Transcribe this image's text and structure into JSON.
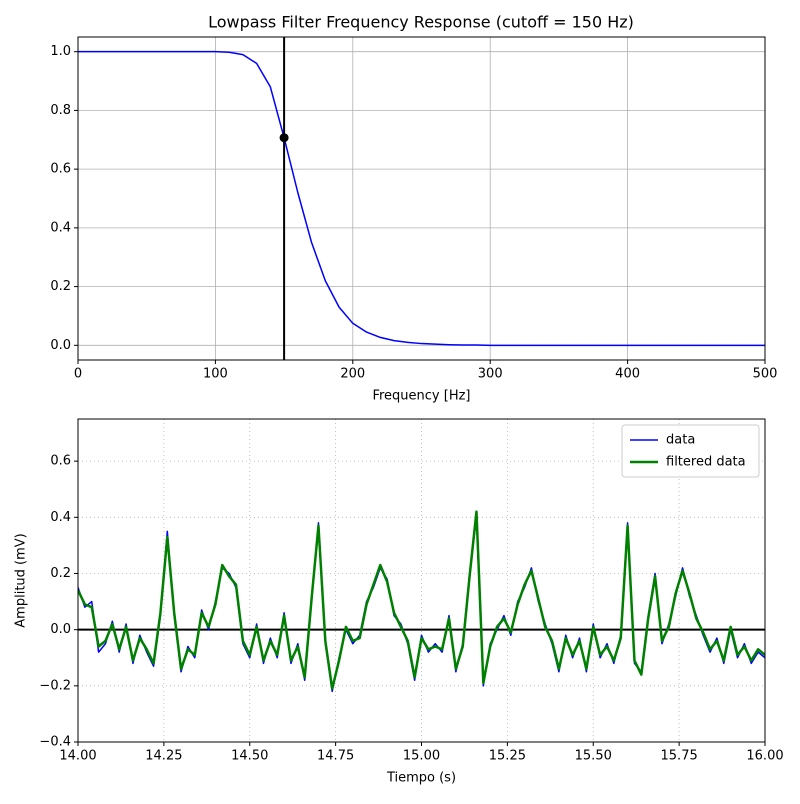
{
  "chart_data": [
    {
      "type": "line",
      "title": "Lowpass Filter Frequency Response (cutoff = 150 Hz)",
      "x_label": "Frequency [Hz]",
      "x": [
        0,
        10,
        20,
        30,
        40,
        50,
        60,
        70,
        80,
        90,
        100,
        110,
        120,
        130,
        140,
        150,
        160,
        170,
        180,
        190,
        200,
        210,
        220,
        230,
        240,
        250,
        260,
        270,
        280,
        290,
        300,
        310,
        320,
        330,
        340,
        350,
        360,
        370,
        380,
        390,
        400,
        410,
        420,
        430,
        440,
        450,
        460,
        470,
        480,
        490,
        500
      ],
      "values": [
        1,
        1,
        1,
        1,
        1,
        1,
        1,
        1,
        1,
        1,
        1,
        0.998,
        0.99,
        0.96,
        0.88,
        0.707,
        0.52,
        0.35,
        0.22,
        0.13,
        0.075,
        0.045,
        0.027,
        0.016,
        0.01,
        0.006,
        0.004,
        0.002,
        0.001,
        0.001,
        0,
        0,
        0,
        0,
        0,
        0,
        0,
        0,
        0,
        0,
        0,
        0,
        0,
        0,
        0,
        0,
        0,
        0,
        0,
        0,
        0
      ],
      "color": "#0000ff",
      "cutoff_line": 150,
      "cutoff_point": {
        "x": 150,
        "y": 0.707
      },
      "marker_color": "#000000",
      "xlim": [
        0,
        500
      ],
      "xticks": [
        0,
        100,
        200,
        300,
        400,
        500
      ],
      "ylim": [
        -0.05,
        1.05
      ],
      "yticks": [
        {
          "value": 0,
          "label": "0.0"
        },
        {
          "value": 0.2,
          "label": "0.2"
        },
        {
          "value": 0.4,
          "label": "0.4"
        },
        {
          "value": 0.6,
          "label": "0.6"
        },
        {
          "value": 0.8,
          "label": "0.8"
        },
        {
          "value": 1,
          "label": "1.0"
        }
      ],
      "grid": "solid"
    },
    {
      "type": "line",
      "x_label": "Tiempo (s)",
      "y_label": "Amplitud (mV)",
      "x": [
        14,
        14.02,
        14.04,
        14.06,
        14.08,
        14.1,
        14.12,
        14.14,
        14.16,
        14.18,
        14.2,
        14.22,
        14.24,
        14.26,
        14.28,
        14.3,
        14.32,
        14.34,
        14.36,
        14.38,
        14.4,
        14.42,
        14.44,
        14.46,
        14.48,
        14.5,
        14.52,
        14.54,
        14.56,
        14.58,
        14.6,
        14.62,
        14.64,
        14.66,
        14.68,
        14.7,
        14.72,
        14.74,
        14.76,
        14.78,
        14.8,
        14.82,
        14.84,
        14.86,
        14.88,
        14.9,
        14.92,
        14.94,
        14.96,
        14.98,
        15,
        15.02,
        15.04,
        15.06,
        15.08,
        15.1,
        15.12,
        15.14,
        15.16,
        15.18,
        15.2,
        15.22,
        15.24,
        15.26,
        15.28,
        15.3,
        15.32,
        15.34,
        15.36,
        15.38,
        15.4,
        15.42,
        15.44,
        15.46,
        15.48,
        15.5,
        15.52,
        15.54,
        15.56,
        15.58,
        15.6,
        15.62,
        15.64,
        15.66,
        15.68,
        15.7,
        15.72,
        15.74,
        15.76,
        15.78,
        15.8,
        15.82,
        15.84,
        15.86,
        15.88,
        15.9,
        15.92,
        15.94,
        15.96,
        15.98,
        16
      ],
      "series": [
        {
          "name": "data",
          "color": "#0000ff",
          "width": 1.5,
          "values": [
            0.15,
            0.08,
            0.1,
            -0.08,
            -0.05,
            0.03,
            -0.08,
            0.02,
            -0.12,
            -0.02,
            -0.08,
            -0.13,
            0.05,
            0.35,
            0.05,
            -0.15,
            -0.06,
            -0.1,
            0.07,
            0,
            0.1,
            0.22,
            0.2,
            0.15,
            -0.05,
            -0.1,
            0.02,
            -0.12,
            -0.03,
            -0.1,
            0.06,
            -0.12,
            -0.05,
            -0.18,
            0.1,
            0.38,
            -0.05,
            -0.22,
            -0.1,
            0,
            -0.05,
            -0.02,
            0.1,
            0.15,
            0.22,
            0.18,
            0.05,
            0.02,
            -0.05,
            -0.18,
            -0.02,
            -0.08,
            -0.05,
            -0.08,
            0.05,
            -0.15,
            -0.05,
            0.2,
            0.4,
            -0.2,
            -0.05,
            0,
            0.05,
            -0.02,
            0.1,
            0.15,
            0.22,
            0.1,
            0.02,
            -0.05,
            -0.15,
            -0.02,
            -0.1,
            -0.03,
            -0.15,
            0.02,
            -0.1,
            -0.05,
            -0.12,
            -0.02,
            0.38,
            -0.12,
            -0.15,
            0.05,
            0.2,
            -0.05,
            0.02,
            0.12,
            0.22,
            0.12,
            0.05,
            -0.02,
            -0.08,
            -0.03,
            -0.12,
            0,
            -0.1,
            -0.05,
            -0.12,
            -0.08,
            -0.1
          ]
        },
        {
          "name": "filtered data",
          "color": "#008000",
          "width": 2.5,
          "values": [
            0.14,
            0.09,
            0.08,
            -0.06,
            -0.04,
            0.02,
            -0.07,
            0.01,
            -0.11,
            -0.03,
            -0.07,
            -0.12,
            0.06,
            0.33,
            0.06,
            -0.14,
            -0.07,
            -0.09,
            0.06,
            0.01,
            0.09,
            0.23,
            0.19,
            0.16,
            -0.04,
            -0.09,
            0.01,
            -0.11,
            -0.04,
            -0.09,
            0.05,
            -0.11,
            -0.06,
            -0.17,
            0.11,
            0.37,
            -0.04,
            -0.21,
            -0.11,
            0.01,
            -0.04,
            -0.03,
            0.09,
            0.16,
            0.23,
            0.17,
            0.06,
            0.01,
            -0.04,
            -0.17,
            -0.03,
            -0.07,
            -0.06,
            -0.07,
            0.04,
            -0.14,
            -0.06,
            0.19,
            0.42,
            -0.19,
            -0.06,
            0.01,
            0.04,
            -0.01,
            0.09,
            0.16,
            0.21,
            0.11,
            0.01,
            -0.04,
            -0.14,
            -0.03,
            -0.09,
            -0.04,
            -0.14,
            0.01,
            -0.09,
            -0.06,
            -0.11,
            -0.03,
            0.37,
            -0.11,
            -0.16,
            0.04,
            0.19,
            -0.04,
            0.01,
            0.13,
            0.21,
            0.13,
            0.04,
            -0.01,
            -0.07,
            -0.04,
            -0.11,
            0.01,
            -0.09,
            -0.06,
            -0.11,
            -0.07,
            -0.09
          ]
        }
      ],
      "hline": 0,
      "hline_color": "#000000",
      "xlim": [
        14,
        16
      ],
      "xticks": [
        {
          "value": 14,
          "label": "14.00"
        },
        {
          "value": 14.25,
          "label": "14.25"
        },
        {
          "value": 14.5,
          "label": "14.50"
        },
        {
          "value": 14.75,
          "label": "14.75"
        },
        {
          "value": 15,
          "label": "15.00"
        },
        {
          "value": 15.25,
          "label": "15.25"
        },
        {
          "value": 15.5,
          "label": "15.50"
        },
        {
          "value": 15.75,
          "label": "15.75"
        },
        {
          "value": 16,
          "label": "16.00"
        }
      ],
      "ylim": [
        -0.4,
        0.75
      ],
      "yticks": [
        {
          "value": -0.4,
          "label": "−0.4"
        },
        {
          "value": -0.2,
          "label": "−0.2"
        },
        {
          "value": 0,
          "label": "0.0"
        },
        {
          "value": 0.2,
          "label": "0.2"
        },
        {
          "value": 0.4,
          "label": "0.4"
        },
        {
          "value": 0.6,
          "label": "0.6"
        }
      ],
      "grid": "dotted",
      "legend": "upper right"
    }
  ]
}
